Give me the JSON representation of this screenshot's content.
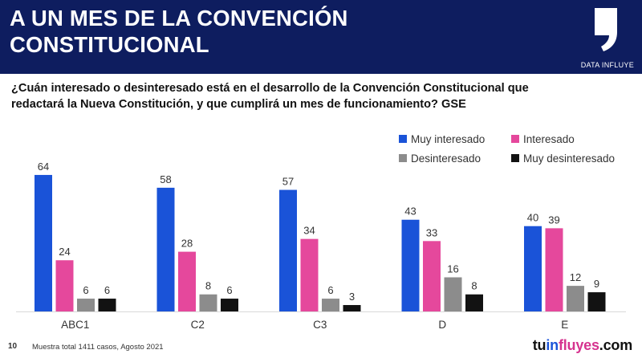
{
  "header": {
    "title_line1": "A UN MES DE LA CONVENCIÓN",
    "title_line2": "CONSTITUCIONAL",
    "brand_label": "DATA INFLUYE"
  },
  "question": {
    "line1": "¿Cuán interesado o desinteresado está en el desarrollo de la Convención Constitucional que",
    "line2": "redactará la Nueva Constitución, y que cumplirá un mes de funcionamiento? GSE"
  },
  "footer": {
    "page_number": "10",
    "note": "Muestra total 1411 casos,  Agosto 2021",
    "logo_part1": "tu",
    "logo_part2": "in",
    "logo_part3": "fluyes",
    "logo_part4": ".com"
  },
  "colors": {
    "header_bg": "#0e1d5f",
    "muy_interesado": "#1a53d8",
    "interesado": "#e5489c",
    "desinteresado": "#8c8c8c",
    "muy_desinteresado": "#121212"
  },
  "chart_data": {
    "type": "bar",
    "categories": [
      "ABC1",
      "C2",
      "C3",
      "D",
      "E"
    ],
    "series": [
      {
        "name": "Muy interesado",
        "color": "#1a53d8",
        "values": [
          64,
          58,
          57,
          43,
          40
        ]
      },
      {
        "name": "Interesado",
        "color": "#e5489c",
        "values": [
          24,
          28,
          34,
          33,
          39
        ]
      },
      {
        "name": "Desinteresado",
        "color": "#8c8c8c",
        "values": [
          6,
          8,
          6,
          16,
          12
        ]
      },
      {
        "name": "Muy desinteresado",
        "color": "#121212",
        "values": [
          6,
          6,
          3,
          8,
          9
        ]
      }
    ],
    "ylim": [
      0,
      70
    ],
    "grid": false,
    "legend_position": "top-right",
    "data_labels": true
  }
}
